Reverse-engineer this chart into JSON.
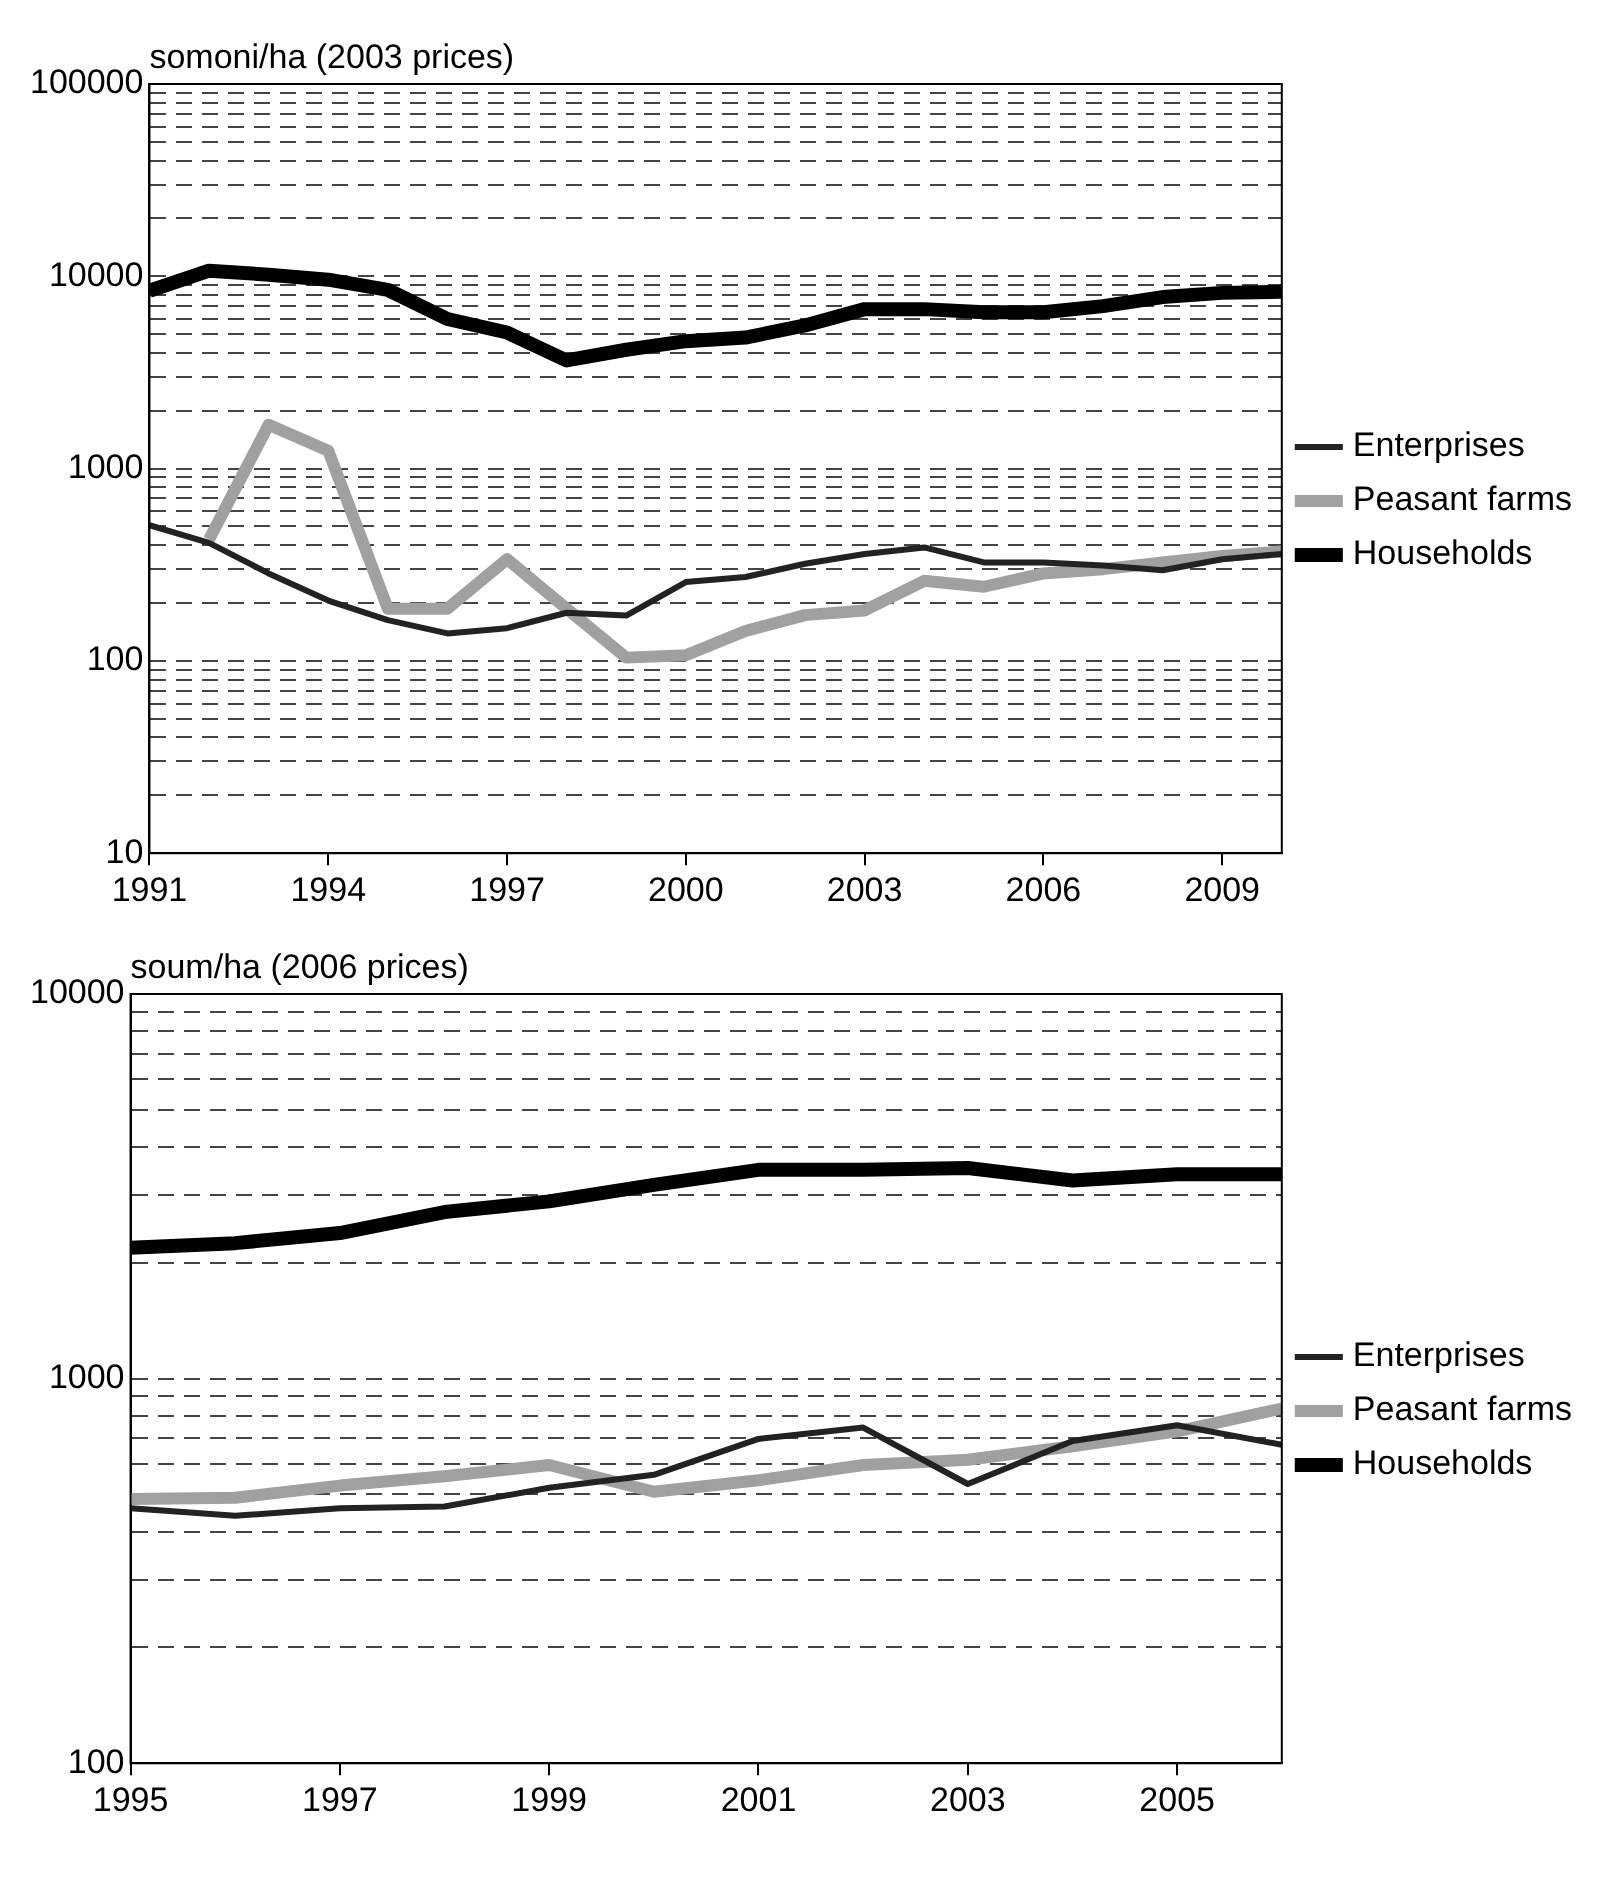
{
  "chart_data": [
    {
      "type": "line",
      "ylabel": "somoni/ha (2003 prices)",
      "x": [
        1991,
        1992,
        1993,
        1994,
        1995,
        1996,
        1997,
        1998,
        1999,
        2000,
        2001,
        2002,
        2003,
        2004,
        2005,
        2006,
        2007,
        2008,
        2009,
        2010
      ],
      "series": [
        {
          "name": "Enterprises",
          "color": "#222222",
          "values": [
            508,
            411,
            285,
            206,
            163,
            139,
            148,
            178,
            172,
            257,
            273,
            320,
            360,
            389,
            325,
            325,
            313,
            296,
            338,
            360
          ]
        },
        {
          "name": "Peasant farms",
          "color": "#a0a0a0",
          "values": [
            null,
            428,
            1690,
            1240,
            187,
            187,
            338,
            187,
            104,
            107,
            143,
            173,
            183,
            261,
            243,
            285,
            300,
            325,
            351,
            371
          ]
        },
        {
          "name": "Households",
          "color": "#000000",
          "values": [
            8400,
            10700,
            10200,
            9600,
            8500,
            6000,
            5100,
            3650,
            4150,
            4600,
            4800,
            5550,
            6750,
            6750,
            6500,
            6500,
            7000,
            7800,
            8200,
            8300
          ]
        }
      ],
      "log": "y",
      "xlim": [
        1991,
        2010
      ],
      "xticks": [
        1991,
        1994,
        1997,
        2000,
        2003,
        2006,
        2009
      ],
      "ylim": [
        10,
        100000
      ],
      "yticks": [
        10,
        {
          "value": 20,
          "label": null
        },
        {
          "value": 30,
          "label": null
        },
        {
          "value": 40,
          "label": null
        },
        {
          "value": 50,
          "label": null
        },
        {
          "value": 60,
          "label": null
        },
        {
          "value": 70,
          "label": null
        },
        {
          "value": 80,
          "label": null
        },
        {
          "value": 90,
          "label": null
        },
        100,
        {
          "value": 200,
          "label": null
        },
        {
          "value": 300,
          "label": null
        },
        {
          "value": 400,
          "label": null
        },
        {
          "value": 500,
          "label": null
        },
        {
          "value": 600,
          "label": null
        },
        {
          "value": 700,
          "label": null
        },
        {
          "value": 800,
          "label": null
        },
        {
          "value": 900,
          "label": null
        },
        1000,
        {
          "value": 2000,
          "label": null
        },
        {
          "value": 3000,
          "label": null
        },
        {
          "value": 4000,
          "label": null
        },
        {
          "value": 5000,
          "label": null
        },
        {
          "value": 6000,
          "label": null
        },
        {
          "value": 7000,
          "label": null
        },
        {
          "value": 8000,
          "label": null
        },
        {
          "value": 9000,
          "label": null
        },
        10000,
        {
          "value": 20000,
          "label": null
        },
        {
          "value": 30000,
          "label": null
        },
        {
          "value": 40000,
          "label": null
        },
        {
          "value": 50000,
          "label": null
        },
        {
          "value": 60000,
          "label": null
        },
        {
          "value": 70000,
          "label": null
        },
        {
          "value": 80000,
          "label": null
        },
        {
          "value": 90000,
          "label": null
        },
        100000
      ],
      "grid": "y",
      "legend": "right",
      "marker": "none",
      "line_style": "solid"
    },
    {
      "type": "line",
      "ylabel": "soum/ha (2006 prices)",
      "x": [
        1995,
        1996,
        1997,
        1998,
        1999,
        2000,
        2001,
        2002,
        2003,
        2004,
        2005,
        2006
      ],
      "series": [
        {
          "name": "Enterprises",
          "color": "#222222",
          "values": [
            460,
            440,
            460,
            465,
            520,
            562,
            697,
            746,
            532,
            688,
            756,
            673
          ]
        },
        {
          "name": "Peasant farms",
          "color": "#a0a0a0",
          "values": [
            486,
            490,
            527,
            557,
            596,
            508,
            544,
            596,
            615,
            667,
            729,
            836
          ]
        },
        {
          "name": "Households",
          "color": "#000000",
          "values": [
            2190,
            2250,
            2390,
            2710,
            2890,
            3190,
            3490,
            3490,
            3530,
            3275,
            3400,
            3400
          ]
        }
      ],
      "log": "y",
      "xlim": [
        1995,
        2006
      ],
      "xticks": [
        1995,
        1997,
        1999,
        2001,
        2003,
        2005
      ],
      "ylim": [
        100,
        10000
      ],
      "yticks": [
        100,
        {
          "value": 200,
          "label": null
        },
        {
          "value": 300,
          "label": null
        },
        {
          "value": 400,
          "label": null
        },
        {
          "value": 500,
          "label": null
        },
        {
          "value": 600,
          "label": null
        },
        {
          "value": 700,
          "label": null
        },
        {
          "value": 800,
          "label": null
        },
        {
          "value": 900,
          "label": null
        },
        1000,
        {
          "value": 2000,
          "label": null
        },
        {
          "value": 3000,
          "label": null
        },
        {
          "value": 4000,
          "label": null
        },
        {
          "value": 5000,
          "label": null
        },
        {
          "value": 6000,
          "label": null
        },
        {
          "value": 7000,
          "label": null
        },
        {
          "value": 8000,
          "label": null
        },
        {
          "value": 9000,
          "label": null
        },
        10000
      ],
      "grid": "y",
      "legend": "right",
      "marker": "none",
      "line_style": "solid"
    }
  ]
}
